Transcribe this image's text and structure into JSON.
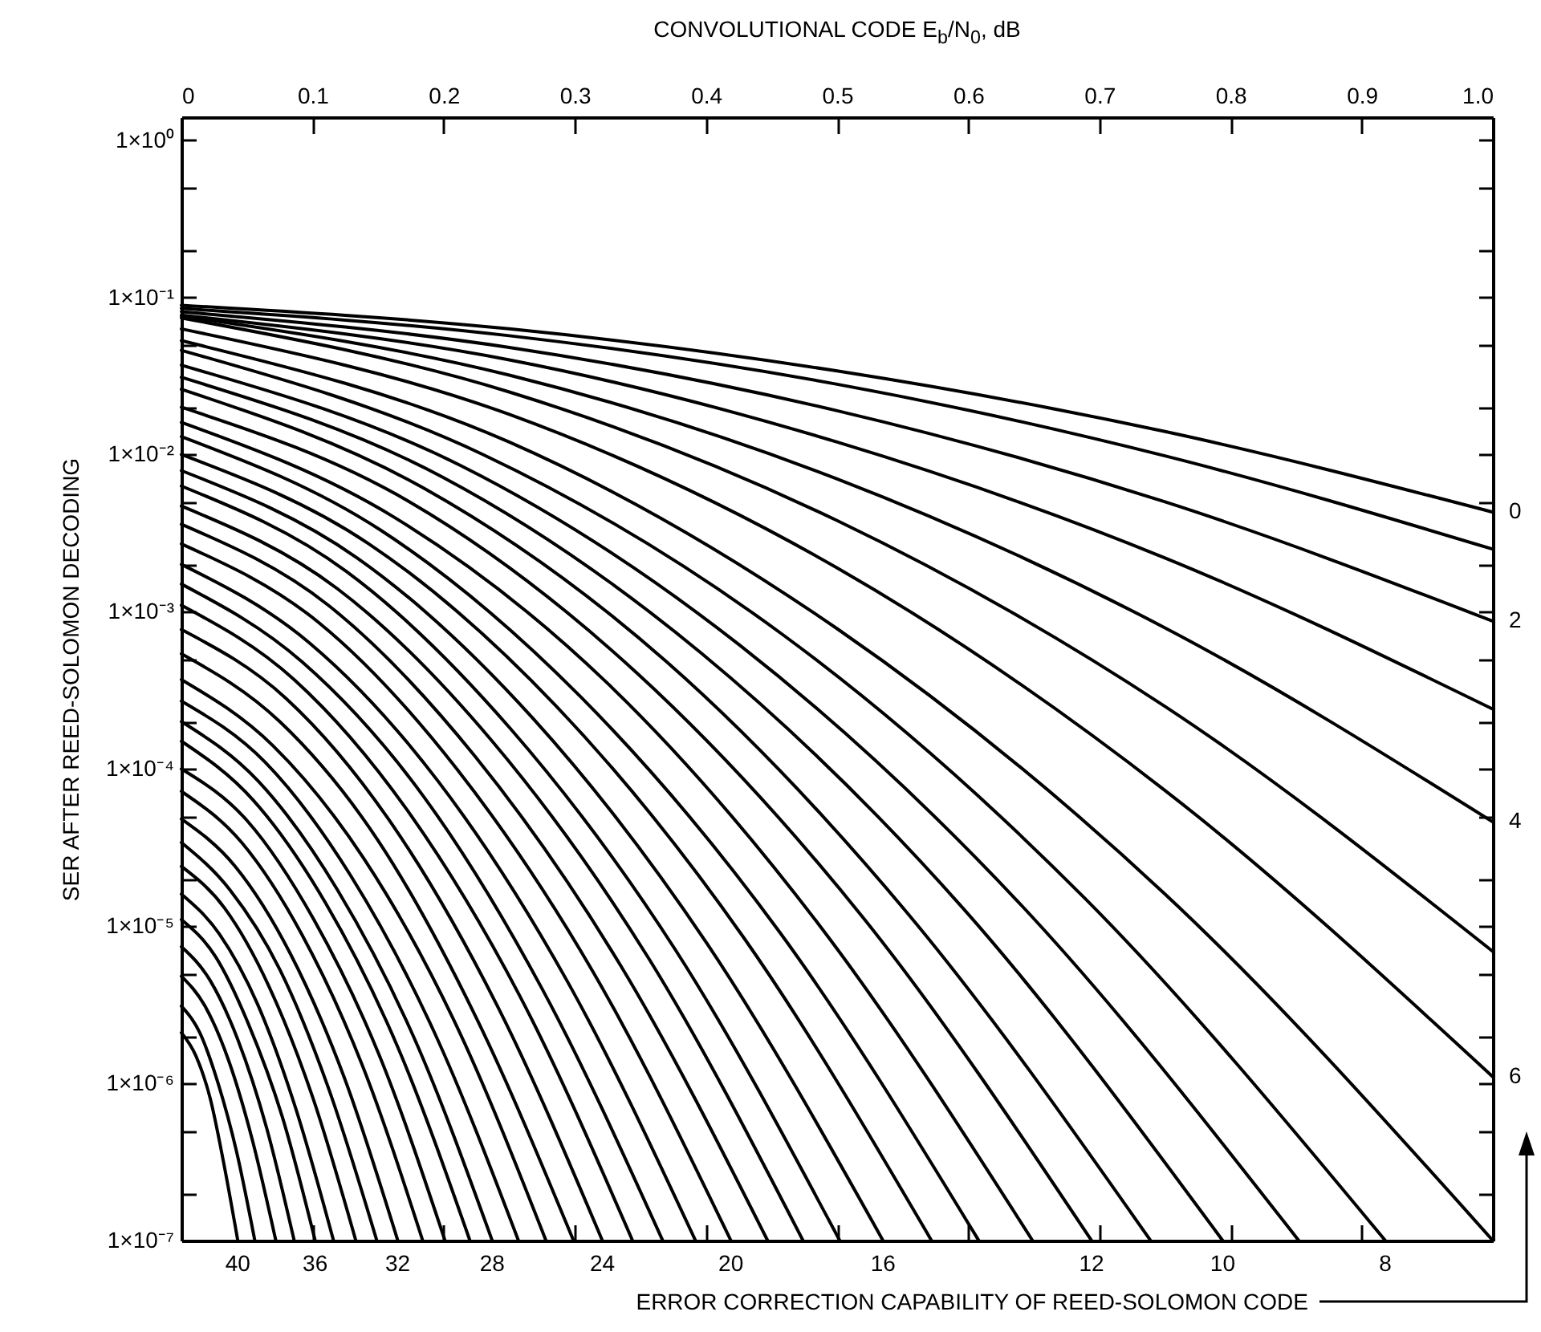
{
  "chart_data": {
    "type": "line",
    "xlabel": "CONVOLUTIONAL CODE E$_{b}$/N$_{0}$, dB",
    "ylabel": "SER AFTER REED-SOLOMON DECODING",
    "annotations": [
      "ERROR CORRECTION CAPABILITY OF REED-SOLOMON CODE",
      {
        "text": "0",
        "x": 1,
        "y": 0.0043
      },
      {
        "text": "2",
        "x": 1,
        "y": 0.00087
      },
      {
        "text": "4",
        "x": 1,
        "y": 4.6e-05
      },
      {
        "text": "6",
        "x": 1,
        "y": 1.1e-06
      },
      {
        "text": "40",
        "x": 0.043,
        "y": 1e-07
      },
      {
        "text": "36",
        "x": 0.102,
        "y": 1e-07
      },
      {
        "text": "32",
        "x": 0.165,
        "y": 1e-07
      },
      {
        "text": "28",
        "x": 0.237,
        "y": 1e-07
      },
      {
        "text": "24",
        "x": 0.321,
        "y": 1e-07
      },
      {
        "text": "20",
        "x": 0.419,
        "y": 1e-07
      },
      {
        "text": "16",
        "x": 0.535,
        "y": 1e-07
      },
      {
        "text": "12",
        "x": 0.694,
        "y": 1e-07
      },
      {
        "text": "10",
        "x": 0.794,
        "y": 1e-07
      },
      {
        "text": "8",
        "x": 0.918,
        "y": 1e-07
      }
    ],
    "log": "y",
    "line_style": "solid",
    "xlim": [
      0,
      1
    ],
    "ylim": [
      1e-07,
      1.4
    ],
    "xticks": [
      0,
      0.1,
      0.2,
      0.3,
      0.4,
      0.5,
      0.6,
      0.7,
      0.8,
      0.9,
      {
        "value": 1,
        "label": "1.0"
      }
    ],
    "yticks": [
      {
        "value": 1,
        "label": "1×10⁰"
      },
      {
        "value": 0.5,
        "label": null
      },
      {
        "value": 0.2,
        "label": null
      },
      {
        "value": 0.1,
        "label": "1×10⁻¹"
      },
      {
        "value": 0.05,
        "label": null
      },
      {
        "value": 0.02,
        "label": null
      },
      {
        "value": 0.01,
        "label": "1×10⁻²"
      },
      {
        "value": 0.005,
        "label": null
      },
      {
        "value": 0.002,
        "label": null
      },
      {
        "value": 0.001,
        "label": "1×10⁻³"
      },
      {
        "value": 0.0005,
        "label": null
      },
      {
        "value": 0.0002,
        "label": null
      },
      {
        "value": 0.0001,
        "label": "1×10⁻⁴"
      },
      {
        "value": 5e-05,
        "label": null
      },
      {
        "value": 2e-05,
        "label": null
      },
      {
        "value": 1e-05,
        "label": "1×10⁻⁵"
      },
      {
        "value": 5e-06,
        "label": null
      },
      {
        "value": 2e-06,
        "label": null
      },
      {
        "value": 1e-06,
        "label": "1×10⁻⁶"
      },
      {
        "value": 5e-07,
        "label": null
      },
      {
        "value": 2e-07,
        "label": null
      },
      {
        "value": 1e-07,
        "label": "1×10⁻⁷"
      }
    ],
    "series": [
      {
        "color": "#000000",
        "x": [
          0,
          0.25,
          0.5,
          0.75,
          1
        ],
        "values": [
          0.089,
          0.063,
          0.034,
          0.014,
          0.0043
        ]
      },
      {
        "color": "#000000",
        "x": [
          0,
          0.25,
          0.5,
          0.75,
          1
        ],
        "values": [
          0.085,
          0.057,
          0.028,
          0.0098,
          0.0025
        ]
      },
      {
        "color": "#000000",
        "x": [
          0,
          0.25,
          0.5,
          0.75,
          1
        ],
        "values": [
          0.081,
          0.048,
          0.019,
          0.005,
          0.00087
        ]
      },
      {
        "color": "#000000",
        "x": [
          0,
          0.25,
          0.5,
          0.75,
          1
        ],
        "values": [
          0.077,
          0.04,
          0.012,
          0.0022,
          0.00024
        ]
      },
      {
        "color": "#000000",
        "x": [
          0,
          0.25,
          0.5,
          0.75,
          1
        ],
        "values": [
          0.076,
          0.032,
          0.007,
          0.00079,
          4.6e-05
        ]
      },
      {
        "color": "#000000",
        "x": [
          0,
          0.25,
          0.5,
          0.75,
          1
        ],
        "values": [
          0.074,
          0.025,
          0.0038,
          0.00025,
          6.9e-06
        ]
      },
      {
        "color": "#000000",
        "x": [
          0,
          0.25,
          0.5,
          0.75,
          1
        ],
        "values": [
          0.063,
          0.018,
          0.0019,
          7.3e-05,
          1.1e-06
        ]
      },
      {
        "color": "#000000",
        "x": [
          0,
          0.25,
          0.5,
          0.75,
          1
        ],
        "values": [
          0.053,
          0.012,
          0.00078,
          1.6e-05,
          1e-07
        ]
      },
      {
        "color": "#000000",
        "x": [
          0,
          0.23,
          0.459,
          0.689,
          0.918
        ],
        "values": [
          0.046,
          0.01,
          0.00071,
          1.5e-05,
          1e-07
        ]
      },
      {
        "color": "#000000",
        "x": [
          0,
          0.213,
          0.426,
          0.639,
          0.852
        ],
        "values": [
          0.037,
          0.0085,
          0.00061,
          1.4e-05,
          1e-07
        ]
      },
      {
        "color": "#000000",
        "x": [
          0,
          0.199,
          0.397,
          0.596,
          0.794
        ],
        "values": [
          0.031,
          0.0072,
          0.00054,
          1.3e-05,
          1e-07
        ]
      },
      {
        "color": "#000000",
        "x": [
          0,
          0.185,
          0.37,
          0.554,
          0.739
        ],
        "values": [
          0.026,
          0.0061,
          0.00048,
          1.2e-05,
          1e-07
        ]
      },
      {
        "color": "#000000",
        "x": [
          0,
          0.174,
          0.347,
          0.521,
          0.694
        ],
        "values": [
          0.02,
          0.005,
          0.00041,
          1.1e-05,
          1e-07
        ]
      },
      {
        "color": "#000000",
        "x": [
          0,
          0.162,
          0.325,
          0.487,
          0.649
        ],
        "values": [
          0.016,
          0.004,
          0.00035,
          1e-05,
          1e-07
        ]
      },
      {
        "color": "#000000",
        "x": [
          0,
          0.152,
          0.304,
          0.456,
          0.608
        ],
        "values": [
          0.013,
          0.0033,
          0.00029,
          9.2e-06,
          1e-07
        ]
      },
      {
        "color": "#000000",
        "x": [
          0,
          0.143,
          0.286,
          0.429,
          0.572
        ],
        "values": [
          0.01,
          0.0027,
          0.00025,
          8.4e-06,
          1e-07
        ]
      },
      {
        "color": "#000000",
        "x": [
          0,
          0.134,
          0.268,
          0.401,
          0.535
        ],
        "values": [
          0.0079,
          0.0022,
          0.00021,
          7.7e-06,
          1e-07
        ]
      },
      {
        "color": "#000000",
        "x": [
          0,
          0.126,
          0.251,
          0.377,
          0.502
        ],
        "values": [
          0.0063,
          0.0018,
          0.00018,
          7e-06,
          1e-07
        ]
      },
      {
        "color": "#000000",
        "x": [
          0,
          0.119,
          0.237,
          0.356,
          0.474
        ],
        "values": [
          0.0047,
          0.0014,
          0.00015,
          6.3e-06,
          1e-07
        ]
      },
      {
        "color": "#000000",
        "x": [
          0,
          0.112,
          0.224,
          0.335,
          0.447
        ],
        "values": [
          0.0036,
          0.0011,
          0.00012,
          5.6e-06,
          1e-07
        ]
      },
      {
        "color": "#000000",
        "x": [
          0,
          0.105,
          0.21,
          0.314,
          0.419
        ],
        "values": [
          0.0027,
          0.00085,
          0.0001,
          5.1e-06,
          1e-07
        ]
      },
      {
        "color": "#000000",
        "x": [
          0,
          0.098,
          0.196,
          0.294,
          0.392
        ],
        "values": [
          0.002,
          0.00063,
          8.3e-05,
          4.5e-06,
          1e-07
        ]
      },
      {
        "color": "#000000",
        "x": [
          0,
          0.092,
          0.184,
          0.275,
          0.367
        ],
        "values": [
          0.0015,
          0.00048,
          6.8e-05,
          4e-06,
          1e-07
        ]
      },
      {
        "color": "#000000",
        "x": [
          0,
          0.086,
          0.172,
          0.258,
          0.344
        ],
        "values": [
          0.0011,
          0.00037,
          5.5e-05,
          3.6e-06,
          1e-07
        ]
      },
      {
        "color": "#000000",
        "x": [
          0,
          0.08,
          0.161,
          0.241,
          0.321
        ],
        "values": [
          0.00077,
          0.00028,
          4.4e-05,
          3.1e-06,
          1e-07
        ]
      },
      {
        "color": "#000000",
        "x": [
          0,
          0.075,
          0.15,
          0.224,
          0.299
        ],
        "values": [
          0.00054,
          0.0002,
          3.5e-05,
          2.7e-06,
          1e-07
        ]
      },
      {
        "color": "#000000",
        "x": [
          0,
          0.07,
          0.139,
          0.209,
          0.278
        ],
        "values": [
          0.00037,
          0.00014,
          2.7e-05,
          2.4e-06,
          1e-07
        ]
      },
      {
        "color": "#000000",
        "x": [
          0,
          0.064,
          0.129,
          0.193,
          0.257
        ],
        "values": [
          0.00027,
          0.00011,
          2.1e-05,
          2.1e-06,
          1e-07
        ]
      },
      {
        "color": "#000000",
        "x": [
          0,
          0.059,
          0.119,
          0.178,
          0.237
        ],
        "values": [
          0.0002,
          8.3e-05,
          1.7e-05,
          1.9e-06,
          1e-07
        ]
      },
      {
        "color": "#000000",
        "x": [
          0,
          0.055,
          0.11,
          0.165,
          0.22
        ],
        "values": [
          0.00015,
          6.3e-05,
          1.4e-05,
          1.7e-06,
          1e-07
        ]
      },
      {
        "color": "#000000",
        "x": [
          0,
          0.05,
          0.101,
          0.151,
          0.201
        ],
        "values": [
          0.0001,
          4.7e-05,
          1.1e-05,
          1.5e-06,
          1e-07
        ]
      },
      {
        "color": "#000000",
        "x": [
          0,
          0.046,
          0.092,
          0.138,
          0.184
        ],
        "values": [
          7.2e-05,
          3.4e-05,
          8.8e-06,
          1.3e-06,
          1e-07
        ]
      },
      {
        "color": "#000000",
        "x": [
          0,
          0.041,
          0.083,
          0.124,
          0.165
        ],
        "values": [
          4.8e-05,
          2.4e-05,
          6.7e-06,
          1.1e-06,
          1e-07
        ]
      },
      {
        "color": "#000000",
        "x": [
          0,
          0.037,
          0.075,
          0.112,
          0.149
        ],
        "values": [
          3.4e-05,
          1.7e-05,
          5.3e-06,
          9.4e-07,
          1e-07
        ]
      },
      {
        "color": "#000000",
        "x": [
          0,
          0.033,
          0.067,
          0.1,
          0.133
        ],
        "values": [
          2.4e-05,
          1.3e-05,
          4.1e-06,
          8.2e-07,
          1e-07
        ]
      },
      {
        "color": "#000000",
        "x": [
          0,
          0.029,
          0.058,
          0.087,
          0.116
        ],
        "values": [
          1.6e-05,
          8.9e-06,
          3.2e-06,
          7e-07,
          1e-07
        ]
      },
      {
        "color": "#000000",
        "x": [
          0,
          0.026,
          0.051,
          0.077,
          0.102
        ],
        "values": [
          1.1e-05,
          6.4e-06,
          2.4e-06,
          6.1e-07,
          1e-07
        ]
      },
      {
        "color": "#000000",
        "x": [
          0,
          0.022,
          0.043,
          0.065,
          0.086
        ],
        "values": [
          7.4e-06,
          4.5e-06,
          1.9e-06,
          5.2e-07,
          1e-07
        ]
      },
      {
        "color": "#000000",
        "x": [
          0,
          0.018,
          0.036,
          0.054,
          0.072
        ],
        "values": [
          4.8e-06,
          3.1e-06,
          1.4e-06,
          4.4e-07,
          1e-07
        ]
      },
      {
        "color": "#000000",
        "x": [
          0,
          0.014,
          0.028,
          0.042,
          0.056
        ],
        "values": [
          3.1e-06,
          2.1e-06,
          1e-06,
          3.7e-07,
          1e-07
        ]
      },
      {
        "color": "#000000",
        "x": [
          0,
          0.011,
          0.022,
          0.032,
          0.043
        ],
        "values": [
          2.1e-06,
          1.5e-06,
          8e-07,
          3.2e-07,
          1e-07
        ]
      }
    ]
  }
}
